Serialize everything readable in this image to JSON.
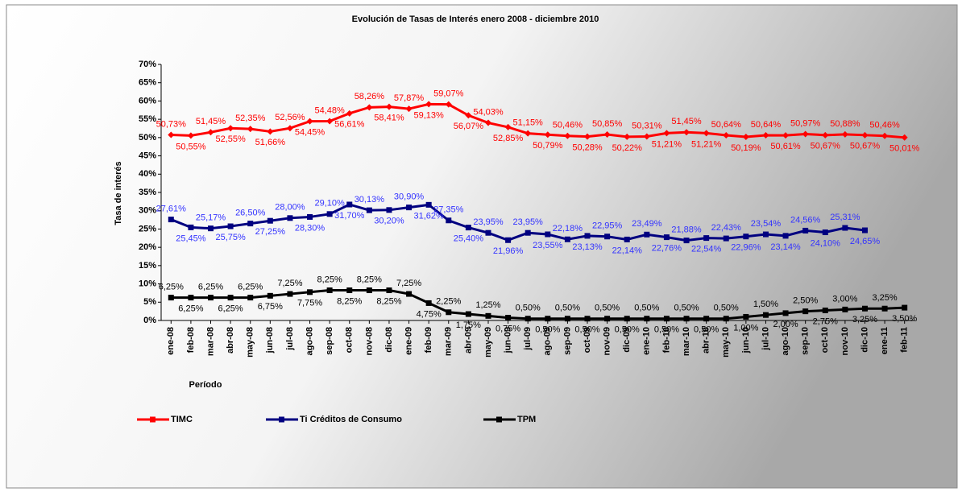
{
  "chart_data": {
    "type": "line",
    "title": "Evolución de Tasas de Interés enero 2008 -  diciembre 2010",
    "y_label": "Tasa de interés",
    "x_label": "Período",
    "categories": [
      "ene-08",
      "feb-08",
      "mar-08",
      "abr-08",
      "may-08",
      "jun-08",
      "jul-08",
      "ago-08",
      "sep-08",
      "oct-08",
      "nov-08",
      "dic-08",
      "ene-09",
      "feb-09",
      "mar-09",
      "abr-09",
      "may-09",
      "jun-09",
      "jul-09",
      "ago-09",
      "sep-09",
      "oct-09",
      "nov-09",
      "dic-09",
      "ene-10",
      "feb-10",
      "mar-10",
      "abr-10",
      "may-10",
      "jun-10",
      "jul-10",
      "ago-10",
      "sep-10",
      "oct-10",
      "nov-10",
      "dic-10",
      "ene-11",
      "feb-11"
    ],
    "ylim": [
      0,
      70
    ],
    "yticks": [
      {
        "value": 0,
        "label": "0%"
      },
      {
        "value": 5,
        "label": "5%"
      },
      {
        "value": 10,
        "label": "10%"
      },
      {
        "value": 15,
        "label": "15%"
      },
      {
        "value": 20,
        "label": "20%"
      },
      {
        "value": 25,
        "label": "25%"
      },
      {
        "value": 30,
        "label": "30%"
      },
      {
        "value": 35,
        "label": "35%"
      },
      {
        "value": 40,
        "label": "40%"
      },
      {
        "value": 45,
        "label": "45%"
      },
      {
        "value": 50,
        "label": "50%"
      },
      {
        "value": 55,
        "label": "55%"
      },
      {
        "value": 60,
        "label": "60%"
      },
      {
        "value": 65,
        "label": "65%"
      },
      {
        "value": 70,
        "label": "70%"
      }
    ],
    "series": [
      {
        "name": "TIMC",
        "color": "#ff0000",
        "values": [
          50.73,
          50.55,
          51.45,
          52.55,
          52.35,
          51.66,
          52.56,
          54.45,
          54.48,
          56.61,
          58.26,
          58.41,
          57.87,
          59.13,
          59.07,
          56.07,
          54.03,
          52.85,
          51.15,
          50.79,
          50.46,
          50.28,
          50.85,
          50.22,
          50.31,
          51.21,
          51.45,
          51.21,
          50.64,
          50.19,
          50.64,
          50.61,
          50.97,
          50.67,
          50.88,
          50.67,
          50.46,
          50.01
        ],
        "value_labels": [
          "50,73%",
          "50,55%",
          "51,45%",
          "52,55%",
          "52,35%",
          "51,66%",
          "52,56%",
          "54,45%",
          "54,48%",
          "56,61%",
          "58,26%",
          "58,41%",
          "57,87%",
          "59,13%",
          "59,07%",
          "56,07%",
          "54,03%",
          "52,85%",
          "51,15%",
          "50,79%",
          "50,46%",
          "50,28%",
          "50,85%",
          "50,22%",
          "50,31%",
          "51,21%",
          "51,45%",
          "51,21%",
          "50,64%",
          "50,19%",
          "50,64%",
          "50,61%",
          "50,97%",
          "50,67%",
          "50,88%",
          "50,67%",
          "50,46%",
          "50,01%"
        ]
      },
      {
        "name": "Ti Créditos de Consumo",
        "color": "#000080",
        "values": [
          27.61,
          25.45,
          25.17,
          25.75,
          26.5,
          27.25,
          28.0,
          28.3,
          29.1,
          31.7,
          30.13,
          30.2,
          30.9,
          31.62,
          27.35,
          25.4,
          23.95,
          21.96,
          23.95,
          23.55,
          22.18,
          23.13,
          22.95,
          22.14,
          23.49,
          22.76,
          21.88,
          22.54,
          22.43,
          22.96,
          23.54,
          23.14,
          24.56,
          24.1,
          25.31,
          24.65,
          null,
          null
        ],
        "value_labels": [
          "27,61%",
          "25,45%",
          "25,17%",
          "25,75%",
          "26,50%",
          "27,25%",
          "28,00%",
          "28,30%",
          "29,10%",
          "31,70%",
          "30,13%",
          "30,20%",
          "30,90%",
          "31,62%",
          "27,35%",
          "25,40%",
          "23,95%",
          "21,96%",
          "23,95%",
          "23,55%",
          "22,18%",
          "23,13%",
          "22,95%",
          "22,14%",
          "23,49%",
          "22,76%",
          "21,88%",
          "22,54%",
          "22,43%",
          "22,96%",
          "23,54%",
          "23,14%",
          "24,56%",
          "24,10%",
          "25,31%",
          "24,65%",
          null,
          null
        ]
      },
      {
        "name": "TPM",
        "color": "#000000",
        "values": [
          6.25,
          6.25,
          6.25,
          6.25,
          6.25,
          6.75,
          7.25,
          7.75,
          8.25,
          8.25,
          8.25,
          8.25,
          7.25,
          4.75,
          2.25,
          1.75,
          1.25,
          0.75,
          0.5,
          0.5,
          0.5,
          0.5,
          0.5,
          0.5,
          0.5,
          0.5,
          0.5,
          0.5,
          0.5,
          1.0,
          1.5,
          2.0,
          2.5,
          2.75,
          3.0,
          3.25,
          3.25,
          3.5
        ],
        "value_labels": [
          "6,25%",
          "6,25%",
          "6,25%",
          "6,25%",
          "6,25%",
          "6,75%",
          "7,25%",
          "7,75%",
          "8,25%",
          "8,25%",
          "8,25%",
          "8,25%",
          "7,25%",
          "4,75%",
          "2,25%",
          "1,75%",
          "1,25%",
          "0,75%",
          "0,50%",
          "0,50%",
          "0,50%",
          "0,50%",
          "0,50%",
          "0,50%",
          "0,50%",
          "0,50%",
          "0,50%",
          "0,50%",
          "0,50%",
          "1,00%",
          "1,50%",
          "2,00%",
          "2,50%",
          "2,75%",
          "3,00%",
          "3,25%",
          "3,25%",
          "3,50%"
        ]
      }
    ]
  }
}
